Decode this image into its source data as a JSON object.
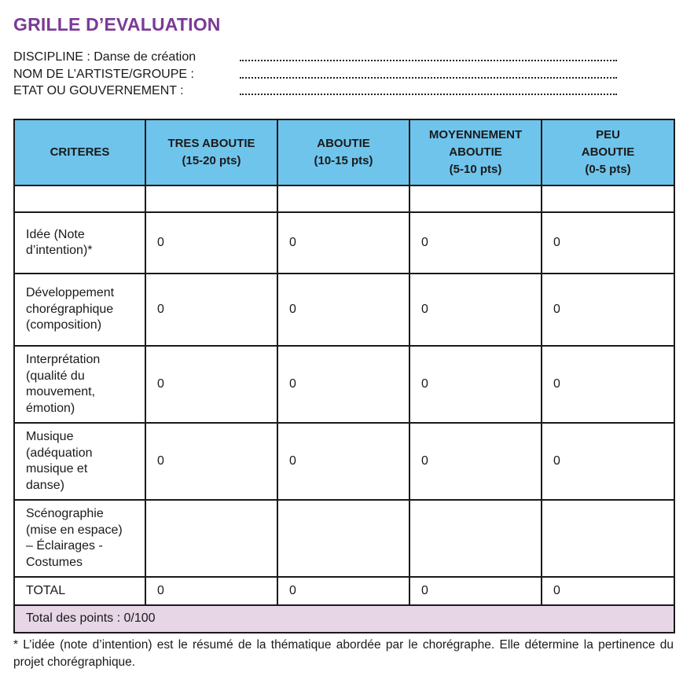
{
  "title": "GRILLE D’EVALUATION",
  "info": {
    "discipline": "DISCIPLINE : Danse de création",
    "artist": "NOM DE L’ARTISTE/GROUPE :",
    "state": "ETAT OU GOUVERNEMENT :"
  },
  "table": {
    "headers": {
      "criteres": "CRITERES",
      "tres_l1": "TRES ABOUTIE",
      "tres_l2": "(15-20 pts)",
      "aboutie_l1": "ABOUTIE",
      "aboutie_l2": "(10-15 pts)",
      "moyen_l1": "MOYENNEMENT",
      "moyen_l2": "ABOUTIE",
      "moyen_l3": "(5-10 pts)",
      "peu_l1": "PEU",
      "peu_l2": "ABOUTIE",
      "peu_l3": "(0-5 pts)"
    },
    "rows": {
      "idee": {
        "l1": "Idée (Note",
        "l2": "d’intention)*",
        "v1": "0",
        "v2": "0",
        "v3": "0",
        "v4": "0"
      },
      "dev": {
        "l1": "Développement",
        "l2": "chorégraphique",
        "l3": "(composition)",
        "v1": "0",
        "v2": "0",
        "v3": "0",
        "v4": "0"
      },
      "interp": {
        "l1": "Interprétation",
        "l2": "(qualité du",
        "l3": "mouvement,",
        "l4": "émotion)",
        "v1": "0",
        "v2": "0",
        "v3": "0",
        "v4": "0"
      },
      "mus": {
        "l1": "Musique",
        "l2": "(adéquation",
        "l3": "musique et",
        "l4": "danse)",
        "v1": "0",
        "v2": "0",
        "v3": "0",
        "v4": "0"
      },
      "sceno": {
        "l1": "Scénographie",
        "l2": "(mise en espace)",
        "l3": "– Éclairages -",
        "l4": "Costumes"
      },
      "total": {
        "label": "TOTAL",
        "v1": "0",
        "v2": "0",
        "v3": "0",
        "v4": "0"
      }
    },
    "total_points": "Total des points : 0/100"
  },
  "footnote": "* L’idée (note d’intention) est le résumé de la thématique abordée par le chorégraphe. Elle détermine la pertinence du projet chorégraphique.",
  "colors": {
    "title": "#7b3a96",
    "header_bg": "#6fc4ec",
    "total_bg": "#e6d6e6"
  }
}
